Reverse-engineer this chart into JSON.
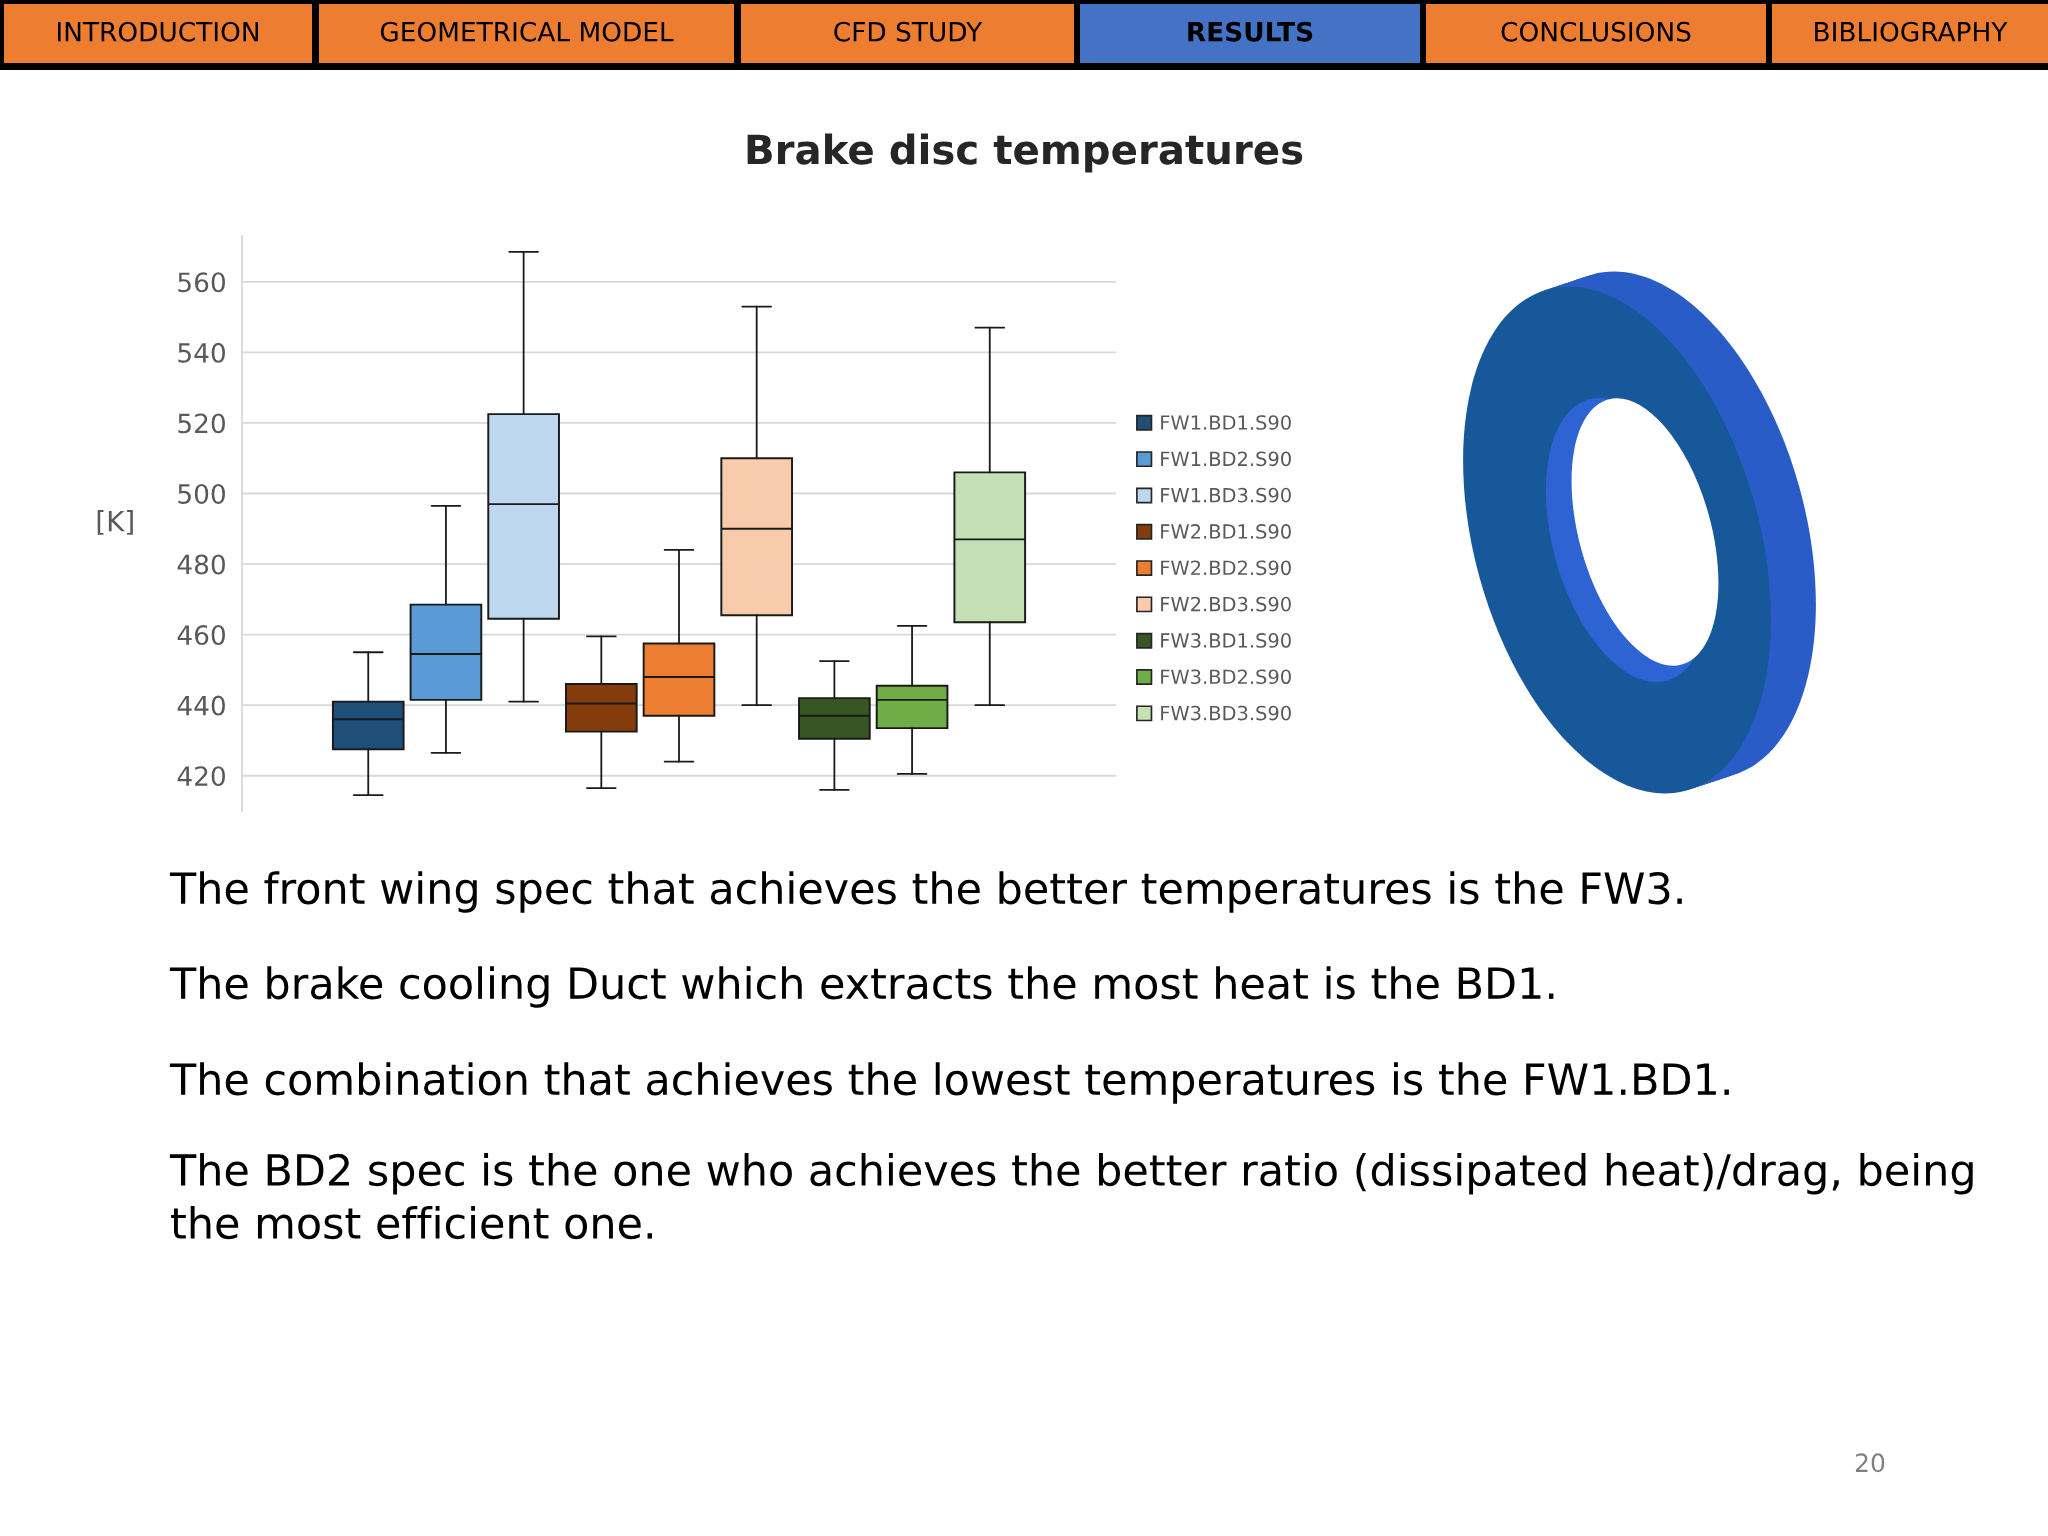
{
  "chart_data": {
    "type": "box",
    "title": "Brake disc temperatures",
    "ylabel": "[K]",
    "categories": [
      null
    ],
    "series": [
      {
        "name": "FW1.BD1.S90",
        "color": "#1f4e79",
        "boxes": [
          {
            "low": 414.5,
            "q1": 427.5,
            "median": 436,
            "q3": 441,
            "high": 455
          }
        ]
      },
      {
        "name": "FW1.BD2.S90",
        "color": "#5b9bd5",
        "boxes": [
          {
            "low": 426.5,
            "q1": 441.5,
            "median": 454.5,
            "q3": 468.5,
            "high": 496.5
          }
        ]
      },
      {
        "name": "FW1.BD3.S90",
        "color": "#bdd7ee",
        "boxes": [
          {
            "low": 441,
            "q1": 464.5,
            "median": 497,
            "q3": 522.5,
            "high": 568.5
          }
        ]
      },
      {
        "name": "FW2.BD1.S90",
        "color": "#843c0c",
        "boxes": [
          {
            "low": 416.5,
            "q1": 432.5,
            "median": 440.5,
            "q3": 446,
            "high": 459.5
          }
        ]
      },
      {
        "name": "FW2.BD2.S90",
        "color": "#ed7d31",
        "boxes": [
          {
            "low": 424,
            "q1": 437,
            "median": 448,
            "q3": 457.5,
            "high": 484
          }
        ]
      },
      {
        "name": "FW2.BD3.S90",
        "color": "#f8cbad",
        "boxes": [
          {
            "low": 440,
            "q1": 465.5,
            "median": 490,
            "q3": 510,
            "high": 553
          }
        ]
      },
      {
        "name": "FW3.BD1.S90",
        "color": "#375623",
        "boxes": [
          {
            "low": 416,
            "q1": 430.5,
            "median": 437,
            "q3": 442,
            "high": 452.5
          }
        ]
      },
      {
        "name": "FW3.BD2.S90",
        "color": "#70ad47",
        "boxes": [
          {
            "low": 420.5,
            "q1": 433.5,
            "median": 441.5,
            "q3": 445.5,
            "high": 462.5
          }
        ]
      },
      {
        "name": "FW3.BD3.S90",
        "color": "#c5e0b4",
        "boxes": [
          {
            "low": 440,
            "q1": 463.5,
            "median": 487,
            "q3": 506,
            "high": 547
          }
        ]
      }
    ],
    "ylim": [
      410,
      573
    ],
    "yticks": [
      420,
      440,
      460,
      480,
      500,
      520,
      540,
      560
    ],
    "grid": "y",
    "legend": "right",
    "annotations": [
      "INTRODUCTION",
      "GEOMETRICAL MODEL",
      "CFD STUDY",
      "RESULTS",
      "CONCLUSIONS",
      "BIBLIOGRAPHY",
      "The front wing spec that achieves the better temperatures is the FW3.",
      "The brake cooling Duct which extracts the most heat is the BD1.",
      "The combination that achieves the lowest temperatures is the FW1.BD1.",
      "The BD2 spec is the one who achieves the better ratio (dissipated heat)/drag, being the most efficient one.",
      "20"
    ]
  }
}
